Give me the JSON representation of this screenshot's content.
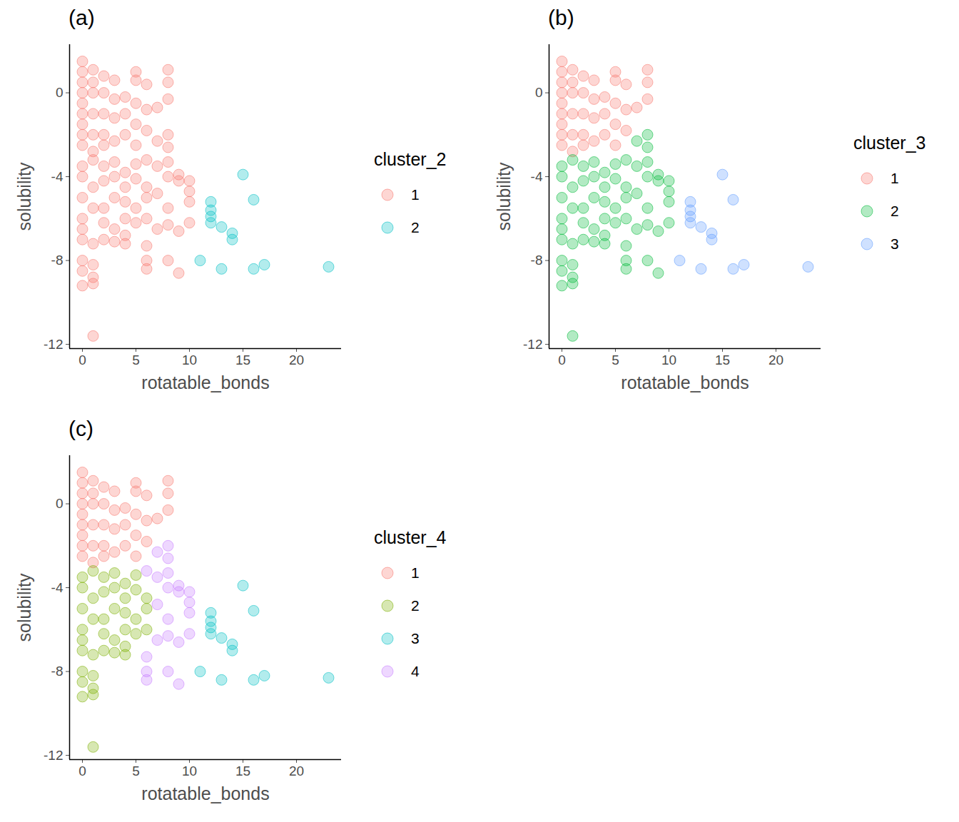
{
  "chart_data": [
    {
      "type": "scatter",
      "title": "(a)",
      "x_label": "rotatable_bonds",
      "y_label": "solubility",
      "xlim": [
        -1.2,
        24.2
      ],
      "ylim": [
        -12.2,
        2.3
      ],
      "xticks": [
        0,
        5,
        10,
        15,
        20
      ],
      "yticks": [
        -12,
        -8,
        -4,
        0
      ],
      "legend": "right",
      "legend_title": "cluster_2",
      "series": [
        {
          "name": "1",
          "color": "#F8766D",
          "x": [
            0,
            0,
            0,
            0,
            0,
            0,
            0,
            0,
            0,
            1,
            1,
            1,
            1,
            1,
            1,
            2,
            2,
            2,
            2,
            2,
            3,
            3,
            3,
            3,
            4,
            4,
            4,
            5,
            5,
            5,
            5,
            5,
            6,
            6,
            6,
            7,
            8,
            8,
            8,
            0,
            0,
            0,
            0,
            0,
            0,
            0,
            0,
            0,
            1,
            1,
            1,
            1,
            1,
            1,
            1,
            1,
            2,
            2,
            2,
            2,
            2,
            3,
            3,
            3,
            3,
            3,
            4,
            4,
            4,
            4,
            4,
            4,
            5,
            5,
            5,
            5,
            6,
            6,
            6,
            6,
            6,
            6,
            6,
            7,
            7,
            7,
            7,
            8,
            8,
            8,
            8,
            8,
            8,
            8,
            9,
            9,
            9,
            9,
            10,
            10,
            10,
            10
          ],
          "values": [
            1.5,
            1.0,
            0.5,
            0,
            -0.5,
            -1,
            -1.5,
            -2,
            -2.5,
            1.1,
            0.5,
            0,
            -1,
            -2,
            -2.8,
            0.8,
            0,
            -1,
            -2,
            -2.5,
            0.6,
            -0.3,
            -1.2,
            -2.3,
            -0.2,
            -1,
            -2,
            1.0,
            0.6,
            -0.5,
            -1.5,
            -2.5,
            0.4,
            -0.8,
            -1.8,
            -0.7,
            1.1,
            0.5,
            -0.3,
            -3.5,
            -4,
            -5,
            -6,
            -6.5,
            -7,
            -8,
            -8.5,
            -9.2,
            -3.2,
            -4.5,
            -5.5,
            -7.2,
            -8.2,
            -8.8,
            -9.1,
            -11.6,
            -3.5,
            -4.2,
            -5.5,
            -6.2,
            -7.0,
            -3.3,
            -4,
            -5,
            -6.5,
            -7.1,
            -3.8,
            -4.5,
            -5.2,
            -6.0,
            -6.8,
            -7.2,
            -3.4,
            -4.1,
            -5.5,
            -6.2,
            -4.5,
            -5.0,
            -6.0,
            -3.2,
            -7.3,
            -8.0,
            -8.4,
            -2.3,
            -3.5,
            -4.8,
            -6.5,
            -2.0,
            -2.6,
            -3.3,
            -4.0,
            -5.5,
            -6.3,
            -8.0,
            -3.9,
            -4.2,
            -6.6,
            -8.6,
            -4.2,
            -4.7,
            -5.2,
            -6.2
          ]
        },
        {
          "name": "2",
          "color": "#00BFC4",
          "x": [
            11,
            12,
            12,
            12,
            12,
            13,
            13,
            14,
            14,
            15,
            16,
            16,
            17,
            23
          ],
          "values": [
            -8.0,
            -5.2,
            -5.6,
            -5.9,
            -6.2,
            -6.4,
            -8.4,
            -6.7,
            -7.0,
            -3.9,
            -5.1,
            -8.4,
            -8.2,
            -8.3
          ]
        }
      ]
    },
    {
      "type": "scatter",
      "title": "(b)",
      "x_label": "rotatable_bonds",
      "y_label": "solubility",
      "xlim": [
        -1.2,
        24.2
      ],
      "ylim": [
        -12.2,
        2.3
      ],
      "xticks": [
        0,
        5,
        10,
        15,
        20
      ],
      "yticks": [
        -12,
        -8,
        -4,
        0
      ],
      "legend": "right",
      "legend_title": "cluster_3",
      "series": [
        {
          "name": "1",
          "color": "#F8766D",
          "x": [
            0,
            0,
            0,
            0,
            0,
            0,
            0,
            0,
            0,
            1,
            1,
            1,
            1,
            1,
            1,
            2,
            2,
            2,
            2,
            2,
            3,
            3,
            3,
            3,
            4,
            4,
            4,
            5,
            5,
            5,
            5,
            5,
            6,
            6,
            6,
            7,
            8,
            8,
            8
          ],
          "values": [
            1.5,
            1.0,
            0.5,
            0,
            -0.5,
            -1,
            -1.5,
            -2,
            -2.5,
            1.1,
            0.5,
            0,
            -1,
            -2,
            -2.8,
            0.8,
            0,
            -1,
            -2,
            -2.5,
            0.6,
            -0.3,
            -1.2,
            -2.3,
            -0.2,
            -1,
            -2,
            1.0,
            0.6,
            -0.5,
            -1.5,
            -2.5,
            0.4,
            -0.8,
            -1.8,
            -0.7,
            1.1,
            0.5,
            -0.3
          ]
        },
        {
          "name": "2",
          "color": "#00BA38",
          "x": [
            0,
            0,
            0,
            0,
            0,
            0,
            0,
            0,
            0,
            1,
            1,
            1,
            1,
            1,
            1,
            1,
            1,
            2,
            2,
            2,
            2,
            2,
            3,
            3,
            3,
            3,
            3,
            4,
            4,
            4,
            4,
            4,
            4,
            5,
            5,
            5,
            5,
            6,
            6,
            6,
            6,
            6,
            6,
            6,
            7,
            7,
            7,
            7,
            8,
            8,
            8,
            8,
            8,
            8,
            8,
            9,
            9,
            9,
            9,
            10,
            10,
            10,
            10
          ],
          "values": [
            -3.5,
            -4,
            -5,
            -6,
            -6.5,
            -7,
            -8,
            -8.5,
            -9.2,
            -3.2,
            -4.5,
            -5.5,
            -7.2,
            -8.2,
            -8.8,
            -9.1,
            -11.6,
            -3.5,
            -4.2,
            -5.5,
            -6.2,
            -7.0,
            -3.3,
            -4,
            -5,
            -6.5,
            -7.1,
            -3.8,
            -4.5,
            -5.2,
            -6.0,
            -6.8,
            -7.2,
            -3.4,
            -4.1,
            -5.5,
            -6.2,
            -4.5,
            -5.0,
            -6.0,
            -3.2,
            -7.3,
            -8.0,
            -8.4,
            -2.3,
            -3.5,
            -4.8,
            -6.5,
            -2.0,
            -2.6,
            -3.3,
            -4.0,
            -5.5,
            -6.3,
            -8.0,
            -3.9,
            -4.2,
            -6.6,
            -8.6,
            -4.2,
            -4.7,
            -5.2,
            -6.2
          ]
        },
        {
          "name": "3",
          "color": "#619CFF",
          "x": [
            11,
            12,
            12,
            12,
            12,
            13,
            13,
            14,
            14,
            15,
            16,
            16,
            17,
            23
          ],
          "values": [
            -8.0,
            -5.2,
            -5.6,
            -5.9,
            -6.2,
            -6.4,
            -8.4,
            -6.7,
            -7.0,
            -3.9,
            -5.1,
            -8.4,
            -8.2,
            -8.3
          ]
        }
      ]
    },
    {
      "type": "scatter",
      "title": "(c)",
      "x_label": "rotatable_bonds",
      "y_label": "solubility",
      "xlim": [
        -1.2,
        24.2
      ],
      "ylim": [
        -12.2,
        2.3
      ],
      "xticks": [
        0,
        5,
        10,
        15,
        20
      ],
      "yticks": [
        -12,
        -8,
        -4,
        0
      ],
      "legend": "right",
      "legend_title": "cluster_4",
      "series": [
        {
          "name": "1",
          "color": "#F8766D",
          "x": [
            0,
            0,
            0,
            0,
            0,
            0,
            0,
            0,
            0,
            1,
            1,
            1,
            1,
            1,
            1,
            2,
            2,
            2,
            2,
            2,
            3,
            3,
            3,
            3,
            4,
            4,
            4,
            5,
            5,
            5,
            5,
            5,
            6,
            6,
            6,
            7,
            8,
            8,
            8
          ],
          "values": [
            1.5,
            1.0,
            0.5,
            0,
            -0.5,
            -1,
            -1.5,
            -2,
            -2.5,
            1.1,
            0.5,
            0,
            -1,
            -2,
            -2.8,
            0.8,
            0,
            -1,
            -2,
            -2.5,
            0.6,
            -0.3,
            -1.2,
            -2.3,
            -0.2,
            -1,
            -2,
            1.0,
            0.6,
            -0.5,
            -1.5,
            -2.5,
            0.4,
            -0.8,
            -1.8,
            -0.7,
            1.1,
            0.5,
            -0.3
          ]
        },
        {
          "name": "2",
          "color": "#7CAE00",
          "x": [
            0,
            0,
            0,
            0,
            0,
            0,
            0,
            0,
            0,
            1,
            1,
            1,
            1,
            1,
            1,
            1,
            1,
            2,
            2,
            2,
            2,
            2,
            3,
            3,
            3,
            3,
            3,
            4,
            4,
            4,
            4,
            4,
            4,
            5,
            5,
            5,
            5,
            6,
            6,
            6
          ],
          "values": [
            -3.5,
            -4,
            -5,
            -6,
            -6.5,
            -7,
            -8,
            -8.5,
            -9.2,
            -3.2,
            -4.5,
            -5.5,
            -7.2,
            -8.2,
            -8.8,
            -9.1,
            -11.6,
            -3.5,
            -4.2,
            -5.5,
            -6.2,
            -7.0,
            -3.3,
            -4,
            -5,
            -6.5,
            -7.1,
            -3.8,
            -4.5,
            -5.2,
            -6.0,
            -6.8,
            -7.2,
            -3.4,
            -4.1,
            -5.5,
            -6.2,
            -4.5,
            -5.0,
            -6.0
          ]
        },
        {
          "name": "3",
          "color": "#00BFC4",
          "x": [
            11,
            12,
            12,
            12,
            12,
            13,
            13,
            14,
            14,
            15,
            16,
            16,
            17,
            23
          ],
          "values": [
            -8.0,
            -5.2,
            -5.6,
            -5.9,
            -6.2,
            -6.4,
            -8.4,
            -6.7,
            -7.0,
            -3.9,
            -5.1,
            -8.4,
            -8.2,
            -8.3
          ]
        },
        {
          "name": "4",
          "color": "#C77CFF",
          "x": [
            6,
            6,
            6,
            6,
            7,
            7,
            7,
            7,
            8,
            8,
            8,
            8,
            8,
            8,
            8,
            9,
            9,
            9,
            9,
            10,
            10,
            10,
            10
          ],
          "values": [
            -3.2,
            -7.3,
            -8.0,
            -8.4,
            -2.3,
            -3.5,
            -4.8,
            -6.5,
            -2.0,
            -2.6,
            -3.3,
            -4.0,
            -5.5,
            -6.3,
            -8.0,
            -3.9,
            -4.2,
            -6.6,
            -8.6,
            -4.2,
            -4.7,
            -5.2,
            -6.2
          ]
        }
      ]
    }
  ]
}
